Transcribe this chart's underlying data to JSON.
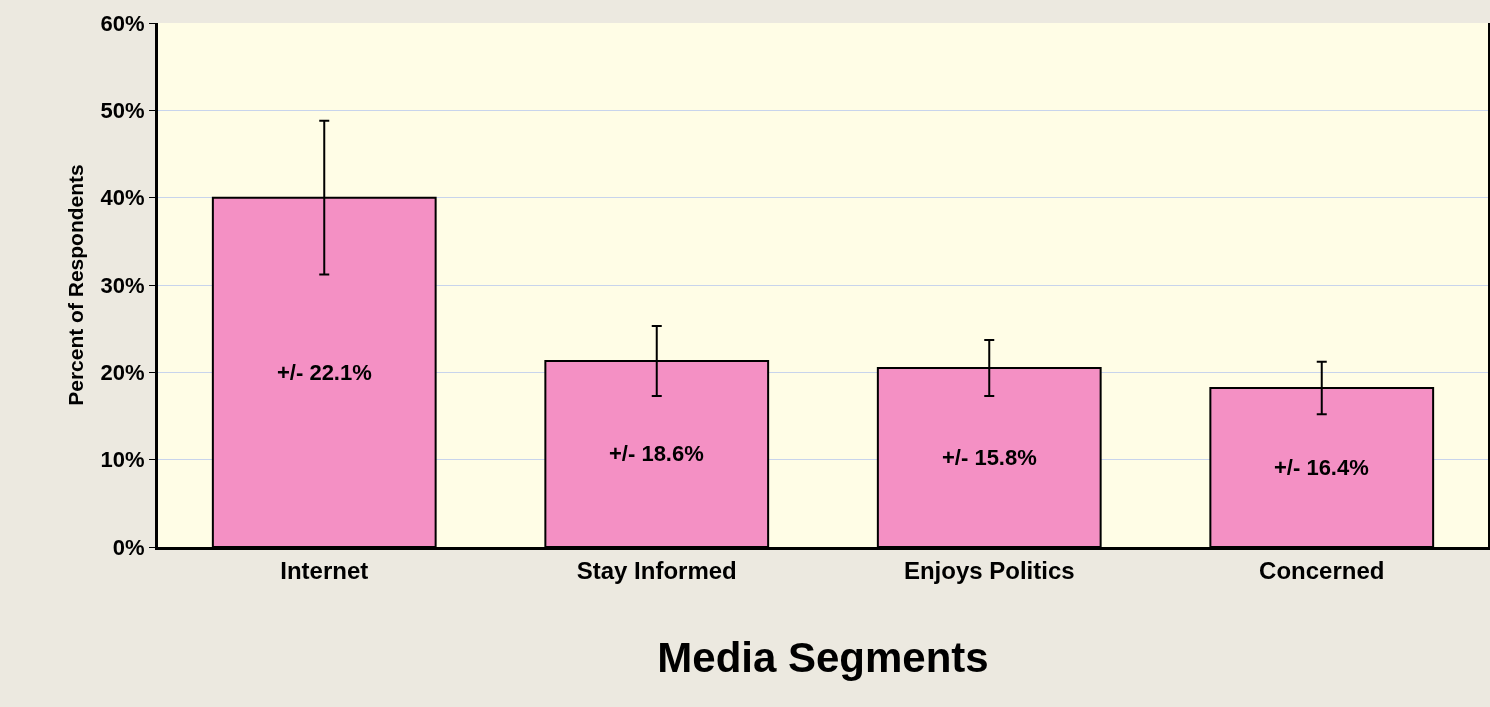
{
  "chart_data": {
    "type": "bar",
    "xlabel": "Media Segments",
    "ylabel": "Percent of Respondents",
    "categories": [
      "Internet",
      "Stay Informed",
      "Enjoys Politics",
      "Concerned"
    ],
    "values": [
      40,
      21.3,
      20.5,
      18.2
    ],
    "errors": [
      8.8,
      4,
      3.2,
      3
    ],
    "color": "#f490c4",
    "ylim": [
      0,
      60
    ],
    "yticks": [
      {
        "value": 0,
        "label": "0%"
      },
      {
        "value": 10,
        "label": "10%"
      },
      {
        "value": 20,
        "label": "20%"
      },
      {
        "value": 30,
        "label": "30%"
      },
      {
        "value": 40,
        "label": "40%"
      },
      {
        "value": 50,
        "label": "50%"
      },
      {
        "value": 60,
        "label": "60%"
      }
    ],
    "grid": "y",
    "annotations": [
      "+/- 22.1%",
      "+/- 18.6%",
      "+/- 15.8%",
      "+/- 16.4%"
    ]
  }
}
